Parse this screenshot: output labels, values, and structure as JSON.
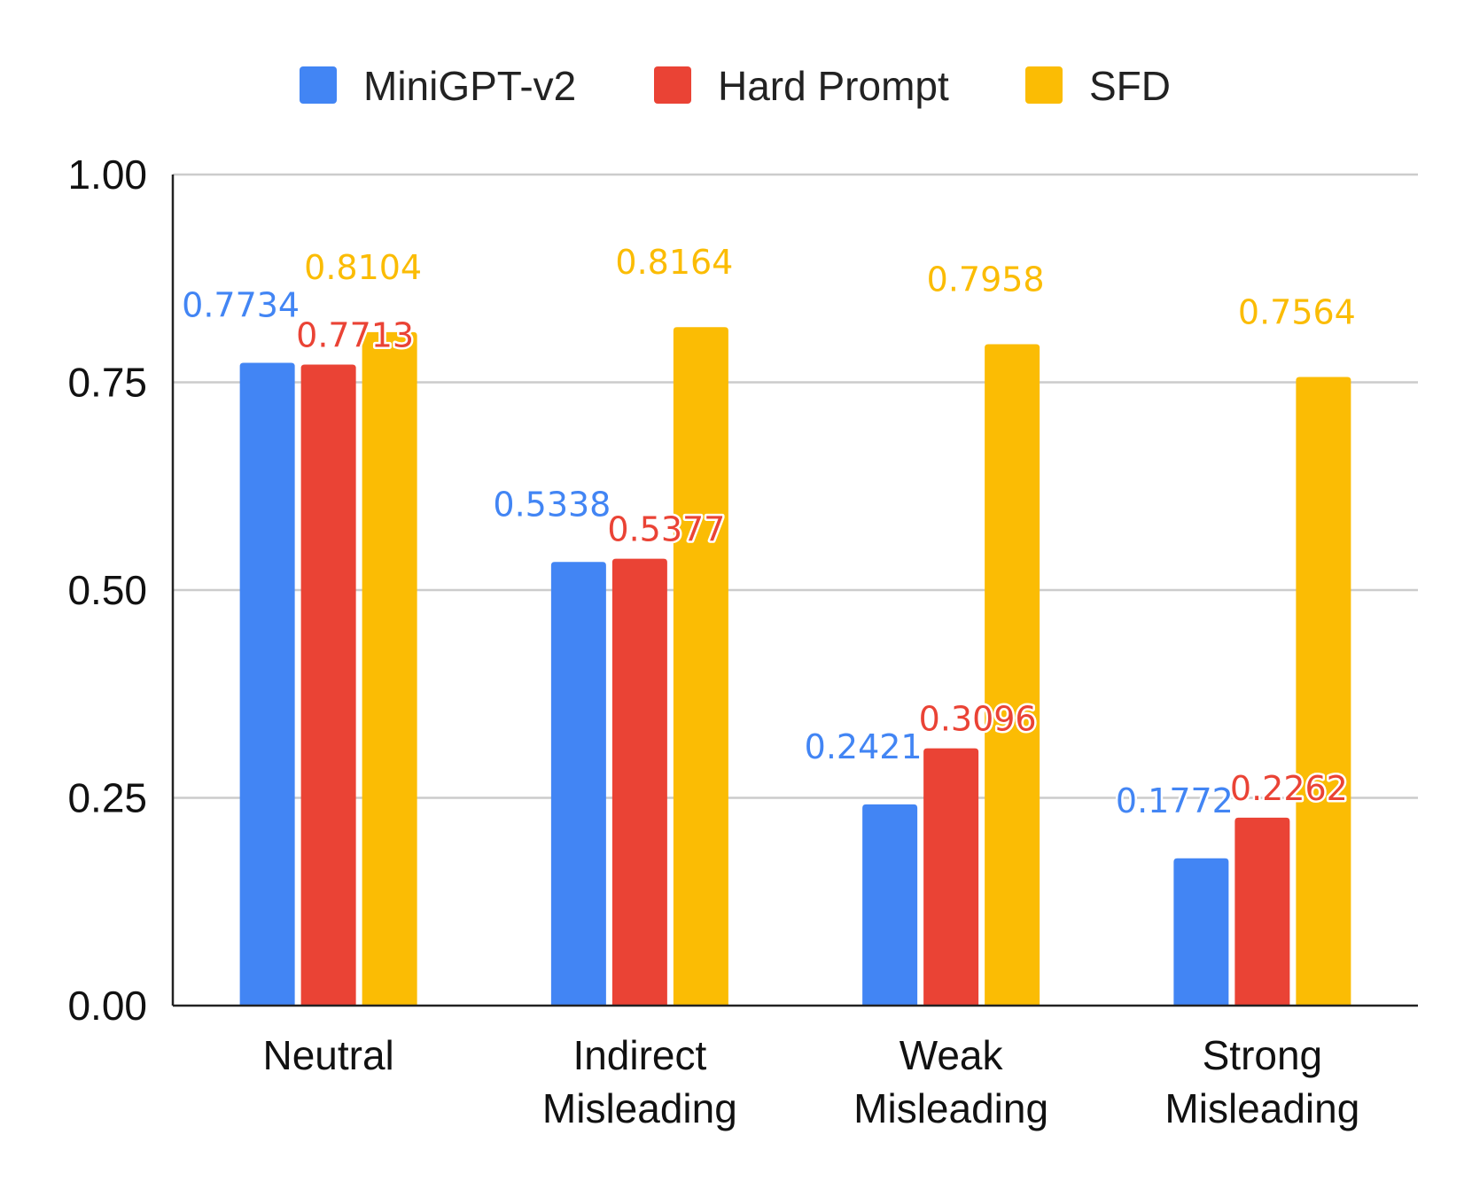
{
  "chart_data": {
    "type": "bar",
    "title": "",
    "xlabel": "",
    "ylabel": "",
    "ylim": [
      0,
      1
    ],
    "yticks": [
      "0.00",
      "0.25",
      "0.50",
      "0.75",
      "1.00"
    ],
    "grid": true,
    "legend_position": "top-center",
    "categories": [
      [
        "Neutral"
      ],
      [
        "Indirect",
        "Misleading"
      ],
      [
        "Weak",
        "Misleading"
      ],
      [
        "Strong",
        "Misleading"
      ]
    ],
    "series": [
      {
        "name": "MiniGPT-v2",
        "color": "#4285F4",
        "values": [
          0.7734,
          0.5338,
          0.2421,
          0.1772
        ],
        "labels": [
          "0.7734",
          "0.5338",
          "0.2421",
          "0.1772"
        ]
      },
      {
        "name": "Hard Prompt",
        "color": "#EA4335",
        "values": [
          0.7713,
          0.5377,
          0.3096,
          0.2262
        ],
        "labels": [
          "0.7713",
          "0.5377",
          "0.3096",
          "0.2262"
        ]
      },
      {
        "name": "SFD",
        "color": "#FBBC04",
        "values": [
          0.8104,
          0.8164,
          0.7958,
          0.7564
        ],
        "labels": [
          "0.8104",
          "0.8164",
          "0.7958",
          "0.7564"
        ]
      }
    ]
  }
}
